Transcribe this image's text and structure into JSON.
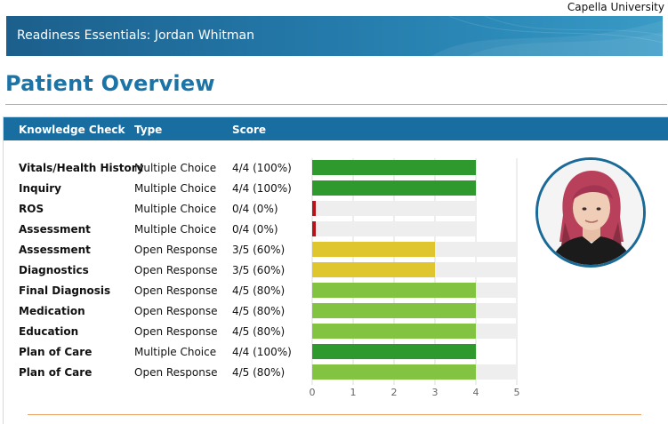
{
  "header": {
    "university": "Capella University",
    "banner_title": "Readiness Essentials:  Jordan Whitman"
  },
  "page_title": "Patient Overview",
  "table": {
    "columns": [
      "Knowledge Check",
      "Type",
      "Score"
    ],
    "rows": [
      {
        "name": "Vitals/Health History",
        "type": "Multiple Choice",
        "score": "4/4 (100%)",
        "earned": 4,
        "max": 4
      },
      {
        "name": "Inquiry",
        "type": "Multiple Choice",
        "score": "4/4 (100%)",
        "earned": 4,
        "max": 4
      },
      {
        "name": "ROS",
        "type": "Multiple Choice",
        "score": "0/4 (0%)",
        "earned": 0,
        "max": 4
      },
      {
        "name": "Assessment",
        "type": "Multiple Choice",
        "score": "0/4 (0%)",
        "earned": 0,
        "max": 4
      },
      {
        "name": "Assessment",
        "type": "Open Response",
        "score": "3/5 (60%)",
        "earned": 3,
        "max": 5
      },
      {
        "name": "Diagnostics",
        "type": "Open Response",
        "score": "3/5 (60%)",
        "earned": 3,
        "max": 5
      },
      {
        "name": "Final Diagnosis",
        "type": "Open Response",
        "score": "4/5 (80%)",
        "earned": 4,
        "max": 5
      },
      {
        "name": "Medication",
        "type": "Open Response",
        "score": "4/5 (80%)",
        "earned": 4,
        "max": 5
      },
      {
        "name": "Education",
        "type": "Open Response",
        "score": "4/5 (80%)",
        "earned": 4,
        "max": 5
      },
      {
        "name": "Plan of Care",
        "type": "Multiple Choice",
        "score": "4/4 (100%)",
        "earned": 4,
        "max": 4
      },
      {
        "name": "Plan of Care",
        "type": "Open Response",
        "score": "4/5 (80%)",
        "earned": 4,
        "max": 5
      }
    ]
  },
  "axis_ticks": [
    "0",
    "1",
    "2",
    "3",
    "4",
    "5"
  ],
  "colors": {
    "full": "#2e9a2e",
    "high": "#82c341",
    "mid": "#dfc62f",
    "zero": "#b5141b",
    "track": "#eeeeee",
    "header": "#186ea0",
    "title": "#1a74a8",
    "rule": "#e8a062"
  },
  "avatar": {
    "icon": "patient-avatar"
  }
}
